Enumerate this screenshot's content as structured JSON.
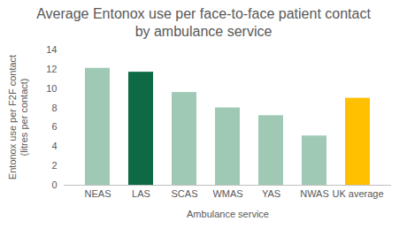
{
  "chart_data": {
    "type": "bar",
    "title": "Average Entonox use per face-to-face patient contact by ambulance service",
    "x_label": "Ambulance service",
    "y_label": "Entonox use per F2F contact (litres per contact)",
    "categories": [
      "NEAS",
      "LAS",
      "SCAS",
      "WMAS",
      "YAS",
      "NWAS",
      "UK average"
    ],
    "values": [
      12.1,
      11.7,
      9.6,
      8.0,
      7.2,
      5.1,
      9.0
    ],
    "colors": [
      "#9fc9b4",
      "#0e6a45",
      "#9fc9b4",
      "#9fc9b4",
      "#9fc9b4",
      "#9fc9b4",
      "#ffc000"
    ],
    "ylim": [
      0,
      14
    ],
    "yticks": [
      0,
      2,
      4,
      6,
      8,
      10,
      12,
      14
    ],
    "grid": false
  }
}
